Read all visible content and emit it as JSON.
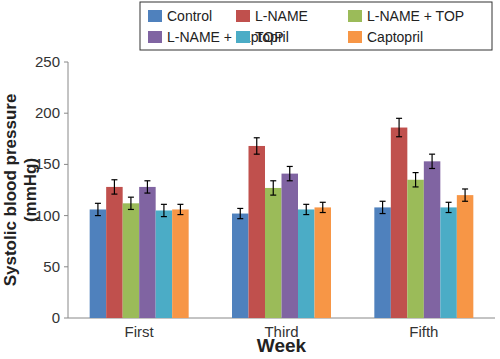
{
  "chart_data": {
    "type": "bar",
    "x_label": "Week",
    "y_label": "Systolic blood pressure (mmHg)",
    "categories": [
      "First",
      "Third",
      "Fifth"
    ],
    "series": [
      {
        "name": "Control",
        "color": "#4f81bd",
        "values": [
          106,
          102,
          108
        ],
        "errors": [
          6,
          5,
          6
        ]
      },
      {
        "name": "L-NAME",
        "color": "#c0504d",
        "values": [
          128,
          168,
          186
        ],
        "errors": [
          7,
          8,
          9
        ]
      },
      {
        "name": "L-NAME + TOP",
        "color": "#9bbb59",
        "values": [
          112,
          127,
          135
        ],
        "errors": [
          6,
          7,
          7
        ]
      },
      {
        "name": "L-NAME + captopril",
        "color": "#8064a2",
        "values": [
          128,
          141,
          153
        ],
        "errors": [
          6,
          7,
          7
        ]
      },
      {
        "name": "TOP",
        "color": "#4bacc6",
        "values": [
          105,
          106,
          108
        ],
        "errors": [
          6,
          5,
          5
        ]
      },
      {
        "name": "Captopril",
        "color": "#f79646",
        "values": [
          106,
          108,
          120
        ],
        "errors": [
          5,
          5,
          6
        ]
      }
    ],
    "ylim": [
      0,
      250
    ],
    "yticks": [
      0,
      50,
      100,
      150,
      200,
      250
    ],
    "grid": false,
    "legend": "top"
  }
}
